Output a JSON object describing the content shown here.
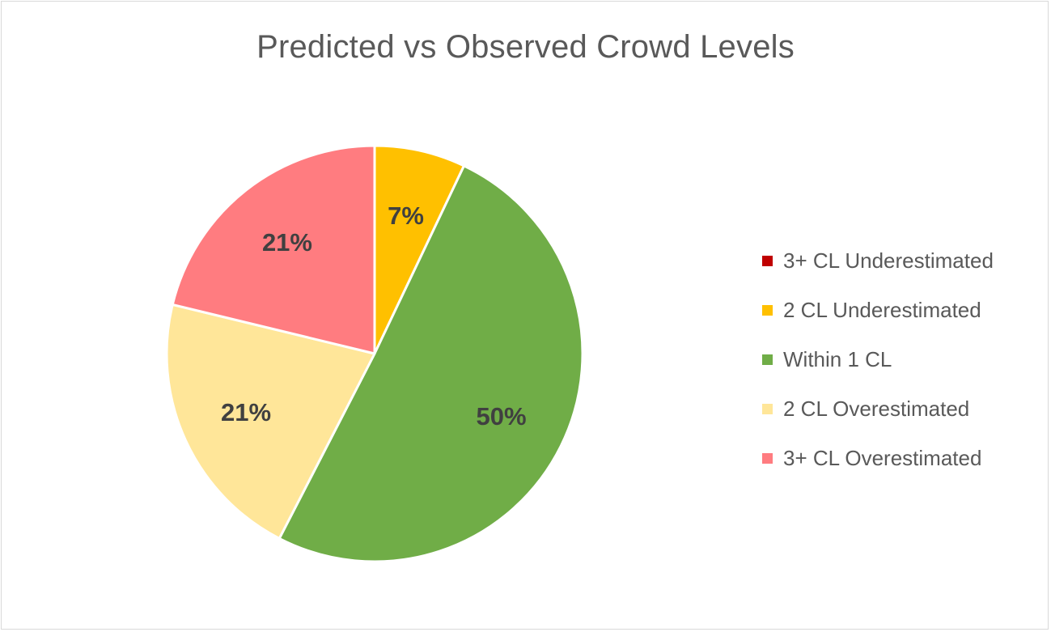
{
  "chart_data": {
    "type": "pie",
    "title": "Predicted vs Observed Crowd Levels",
    "legend_position": "right",
    "slices": [
      {
        "name": "3+ CL Underestimated",
        "value": 0,
        "label": "",
        "color": "#C00000"
      },
      {
        "name": "2 CL Underestimated",
        "value": 7,
        "label": "7%",
        "color": "#FFC000"
      },
      {
        "name": "Within 1 CL",
        "value": 50,
        "label": "50%",
        "color": "#70AD47"
      },
      {
        "name": "2 CL Overestimated",
        "value": 21,
        "label": "21%",
        "color": "#FFE699"
      },
      {
        "name": "3+ CL Overestimated",
        "value": 21,
        "label": "21%",
        "color": "#FF7C80"
      }
    ]
  }
}
